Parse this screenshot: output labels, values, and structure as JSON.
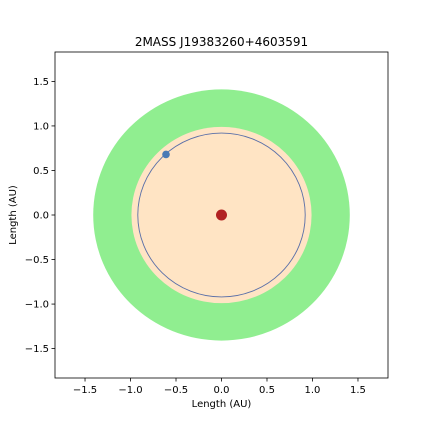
{
  "chart_data": {
    "type": "scatter",
    "title": "2MASS J19383260+4603591",
    "xlabel": "Length (AU)",
    "ylabel": "Length (AU)",
    "xlim": [
      -1.83,
      1.83
    ],
    "ylim": [
      -1.83,
      1.83
    ],
    "xticks": [
      -1.5,
      -1.0,
      -0.5,
      0.0,
      0.5,
      1.0,
      1.5
    ],
    "yticks": [
      -1.5,
      -1.0,
      -0.5,
      0.0,
      0.5,
      1.0,
      1.5
    ],
    "xtick_labels": [
      "−1.5",
      "−1.0",
      "−0.5",
      "0.0",
      "0.5",
      "1.0",
      "1.5"
    ],
    "ytick_labels": [
      "−1.5",
      "−1.0",
      "−0.5",
      "0.0",
      "0.5",
      "1.0",
      "1.5"
    ],
    "grid": false,
    "outer_zone": {
      "radius": 1.41,
      "color": "#90ee90"
    },
    "inner_zone": {
      "radius": 0.99,
      "color": "#ffe4c4"
    },
    "orbit": {
      "radius": 0.92,
      "color": "#5a6fa8"
    },
    "star": {
      "x": 0.0,
      "y": 0.0,
      "color": "#b22222"
    },
    "planet": {
      "x": -0.61,
      "y": 0.68,
      "color": "#4a7ab5"
    }
  }
}
